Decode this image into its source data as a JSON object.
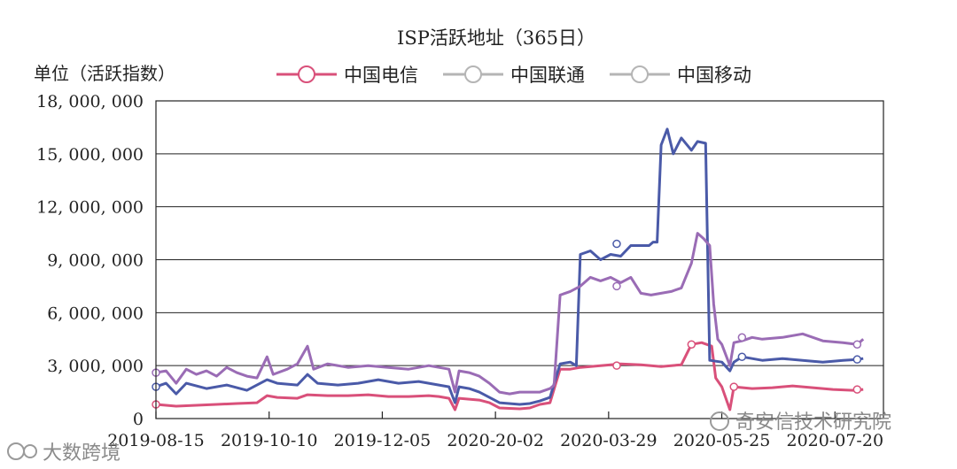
{
  "chart_data": {
    "type": "line",
    "title": "ISP活跃地址（365日）",
    "ylabel": "单位（活跃指数）",
    "xlabel": "",
    "ylim": [
      0,
      18000000
    ],
    "yticks": [
      0,
      3000000,
      6000000,
      9000000,
      12000000,
      15000000,
      18000000
    ],
    "ytick_labels": [
      "0",
      "3, 000, 000",
      "6, 000, 000",
      "9, 000, 000",
      "12, 000, 000",
      "15, 000, 000",
      "18, 000, 000"
    ],
    "xlim": [
      0,
      360
    ],
    "xtick_positions": [
      0,
      56,
      112,
      168,
      224,
      280,
      336
    ],
    "xtick_labels": [
      "2019-08-15",
      "2019-10-10",
      "2019-12-05",
      "2020-20-02",
      "2020-03-29",
      "2020-05-25",
      "2020-07-20"
    ],
    "legend_position": "top",
    "grid": "horizontal",
    "series": [
      {
        "name": "中国电信",
        "color": "#d9507a",
        "points": [
          [
            0,
            800000
          ],
          [
            10,
            700000
          ],
          [
            20,
            750000
          ],
          [
            30,
            800000
          ],
          [
            40,
            850000
          ],
          [
            50,
            900000
          ],
          [
            55,
            1300000
          ],
          [
            60,
            1200000
          ],
          [
            70,
            1150000
          ],
          [
            75,
            1350000
          ],
          [
            85,
            1300000
          ],
          [
            95,
            1300000
          ],
          [
            105,
            1350000
          ],
          [
            115,
            1250000
          ],
          [
            125,
            1250000
          ],
          [
            135,
            1300000
          ],
          [
            140,
            1250000
          ],
          [
            145,
            1150000
          ],
          [
            148,
            500000
          ],
          [
            150,
            1150000
          ],
          [
            155,
            1100000
          ],
          [
            160,
            1050000
          ],
          [
            165,
            900000
          ],
          [
            170,
            600000
          ],
          [
            180,
            550000
          ],
          [
            185,
            600000
          ],
          [
            190,
            800000
          ],
          [
            195,
            900000
          ],
          [
            200,
            2800000
          ],
          [
            205,
            2800000
          ],
          [
            210,
            2900000
          ],
          [
            220,
            3000000
          ],
          [
            230,
            3100000
          ],
          [
            240,
            3050000
          ],
          [
            250,
            2950000
          ],
          [
            255,
            3000000
          ],
          [
            260,
            3050000
          ],
          [
            265,
            4200000
          ],
          [
            270,
            4300000
          ],
          [
            275,
            4100000
          ],
          [
            277,
            2300000
          ],
          [
            280,
            1800000
          ],
          [
            284,
            500000
          ],
          [
            286,
            1800000
          ],
          [
            295,
            1700000
          ],
          [
            305,
            1750000
          ],
          [
            315,
            1850000
          ],
          [
            325,
            1750000
          ],
          [
            335,
            1650000
          ],
          [
            345,
            1600000
          ],
          [
            350,
            1650000
          ]
        ],
        "markers": [
          [
            0,
            800000
          ],
          [
            228,
            3000000
          ],
          [
            265,
            4200000
          ],
          [
            286,
            1800000
          ],
          [
            347,
            1650000
          ]
        ]
      },
      {
        "name": "中国联通",
        "color": "#4a5aa8",
        "points": [
          [
            0,
            1800000
          ],
          [
            5,
            2000000
          ],
          [
            10,
            1400000
          ],
          [
            15,
            2000000
          ],
          [
            25,
            1700000
          ],
          [
            35,
            1900000
          ],
          [
            45,
            1600000
          ],
          [
            55,
            2200000
          ],
          [
            60,
            2000000
          ],
          [
            70,
            1900000
          ],
          [
            75,
            2500000
          ],
          [
            80,
            2000000
          ],
          [
            90,
            1900000
          ],
          [
            100,
            2000000
          ],
          [
            110,
            2200000
          ],
          [
            120,
            2000000
          ],
          [
            130,
            2100000
          ],
          [
            140,
            1900000
          ],
          [
            145,
            1800000
          ],
          [
            148,
            900000
          ],
          [
            150,
            1800000
          ],
          [
            155,
            1700000
          ],
          [
            160,
            1500000
          ],
          [
            165,
            1200000
          ],
          [
            170,
            900000
          ],
          [
            180,
            800000
          ],
          [
            185,
            850000
          ],
          [
            190,
            1000000
          ],
          [
            195,
            1200000
          ],
          [
            200,
            3100000
          ],
          [
            205,
            3200000
          ],
          [
            208,
            3000000
          ],
          [
            210,
            9300000
          ],
          [
            215,
            9500000
          ],
          [
            220,
            9000000
          ],
          [
            225,
            9300000
          ],
          [
            230,
            9200000
          ],
          [
            235,
            9800000
          ],
          [
            240,
            9800000
          ],
          [
            244,
            9800000
          ],
          [
            246,
            10000000
          ],
          [
            248,
            10000000
          ],
          [
            250,
            15500000
          ],
          [
            253,
            16400000
          ],
          [
            256,
            15000000
          ],
          [
            260,
            15900000
          ],
          [
            265,
            15200000
          ],
          [
            268,
            15700000
          ],
          [
            272,
            15600000
          ],
          [
            274,
            3300000
          ],
          [
            280,
            3200000
          ],
          [
            284,
            2700000
          ],
          [
            286,
            3200000
          ],
          [
            290,
            3500000
          ],
          [
            300,
            3300000
          ],
          [
            310,
            3400000
          ],
          [
            320,
            3300000
          ],
          [
            330,
            3200000
          ],
          [
            340,
            3300000
          ],
          [
            347,
            3350000
          ],
          [
            350,
            3400000
          ]
        ],
        "markers": [
          [
            0,
            1800000
          ],
          [
            228,
            9900000
          ],
          [
            290,
            3500000
          ],
          [
            347,
            3350000
          ]
        ]
      },
      {
        "name": "中国移动",
        "color": "#9a6cb5",
        "points": [
          [
            0,
            2600000
          ],
          [
            5,
            2700000
          ],
          [
            10,
            2000000
          ],
          [
            15,
            2800000
          ],
          [
            20,
            2500000
          ],
          [
            25,
            2700000
          ],
          [
            30,
            2400000
          ],
          [
            35,
            2900000
          ],
          [
            40,
            2600000
          ],
          [
            45,
            2400000
          ],
          [
            50,
            2300000
          ],
          [
            55,
            3500000
          ],
          [
            58,
            2500000
          ],
          [
            65,
            2800000
          ],
          [
            70,
            3100000
          ],
          [
            75,
            4100000
          ],
          [
            78,
            2800000
          ],
          [
            85,
            3100000
          ],
          [
            95,
            2900000
          ],
          [
            105,
            3000000
          ],
          [
            115,
            2900000
          ],
          [
            125,
            2800000
          ],
          [
            135,
            3000000
          ],
          [
            140,
            2900000
          ],
          [
            145,
            2800000
          ],
          [
            148,
            1500000
          ],
          [
            150,
            2700000
          ],
          [
            155,
            2600000
          ],
          [
            160,
            2400000
          ],
          [
            165,
            2000000
          ],
          [
            170,
            1500000
          ],
          [
            175,
            1400000
          ],
          [
            180,
            1500000
          ],
          [
            190,
            1500000
          ],
          [
            195,
            1700000
          ],
          [
            197,
            1900000
          ],
          [
            200,
            7000000
          ],
          [
            205,
            7200000
          ],
          [
            210,
            7500000
          ],
          [
            215,
            8000000
          ],
          [
            220,
            7800000
          ],
          [
            225,
            8000000
          ],
          [
            230,
            7700000
          ],
          [
            235,
            8000000
          ],
          [
            240,
            7100000
          ],
          [
            245,
            7000000
          ],
          [
            250,
            7100000
          ],
          [
            255,
            7200000
          ],
          [
            260,
            7400000
          ],
          [
            265,
            8800000
          ],
          [
            268,
            10500000
          ],
          [
            271,
            10200000
          ],
          [
            274,
            9800000
          ],
          [
            276,
            6500000
          ],
          [
            278,
            4500000
          ],
          [
            280,
            4200000
          ],
          [
            284,
            3000000
          ],
          [
            286,
            4300000
          ],
          [
            290,
            4400000
          ],
          [
            295,
            4600000
          ],
          [
            300,
            4500000
          ],
          [
            310,
            4600000
          ],
          [
            320,
            4800000
          ],
          [
            330,
            4400000
          ],
          [
            340,
            4300000
          ],
          [
            347,
            4200000
          ],
          [
            350,
            4500000
          ]
        ],
        "markers": [
          [
            0,
            2600000
          ],
          [
            228,
            7500000
          ],
          [
            290,
            4600000
          ],
          [
            347,
            4200000
          ]
        ]
      }
    ]
  },
  "watermark": {
    "left_text": "大数跨境",
    "right_text": "奇安信技术研究院"
  }
}
